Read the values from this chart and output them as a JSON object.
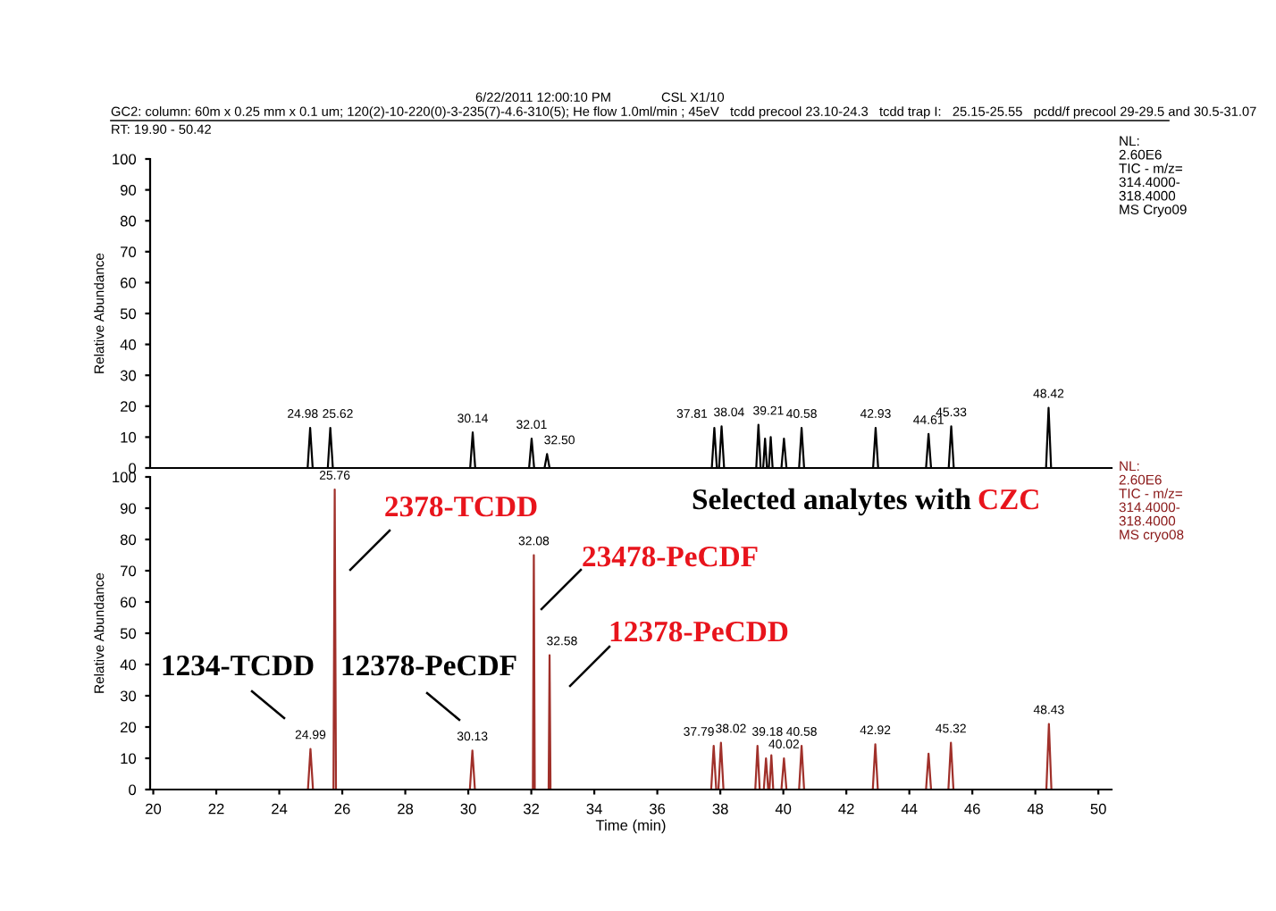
{
  "chart_data": [
    {
      "type": "line",
      "ylabel": "Relative Abundance",
      "xlim": [
        19.9,
        50.42
      ],
      "ylim": [
        0,
        100
      ],
      "yticks": [
        0,
        10,
        20,
        30,
        40,
        50,
        60,
        70,
        80,
        90,
        100
      ],
      "tick_labels": "y",
      "annotations": [
        "6/22/2011 12:00:10 PM",
        "CSL X1/10",
        "GC2: column: 60m x 0.25 mm x 0.1 um; 120(2)-10-220(0)-3-235(7)-4.6-310(5); He flow 1.0ml/min ; 45eV   tcdd precool 23.10-24.3   tcdd trap I:   25.15-25.55   pcdd/f precool 29-29.5 and 30.5-31.07",
        "RT: 19.90 - 50.42",
        "NL:\n2.60E6\nTIC - m/z=\n314.4000-\n318.4000\nMS Cryo09",
        {
          "text": "24.98",
          "x": 24.98,
          "y": 13
        },
        {
          "text": "25.62",
          "x": 25.62,
          "y": 13
        },
        {
          "text": "30.14",
          "x": 30.14,
          "y": 11.5
        },
        {
          "text": "32.01",
          "x": 32.01,
          "y": 9.5
        },
        {
          "text": "32.50",
          "x": 32.5,
          "y": 4.5
        },
        {
          "text": "37.81",
          "x": 37.81,
          "y": 13
        },
        {
          "text": "38.04",
          "x": 38.04,
          "y": 13.5
        },
        {
          "text": "39.21",
          "x": 39.21,
          "y": 14
        },
        {
          "text": "40.58",
          "x": 40.58,
          "y": 13
        },
        {
          "text": "42.93",
          "x": 42.93,
          "y": 13
        },
        {
          "text": "44.61",
          "x": 44.61,
          "y": 11
        },
        {
          "text": "45.33",
          "x": 45.33,
          "y": 13.5
        },
        {
          "text": "48.42",
          "x": 48.42,
          "y": 19.5
        }
      ],
      "x": [
        19.9,
        24.9,
        24.98,
        25.06,
        25.54,
        25.62,
        25.7,
        30.06,
        30.14,
        30.22,
        31.93,
        32.01,
        32.09,
        32.42,
        32.5,
        32.58,
        37.73,
        37.81,
        37.89,
        37.96,
        38.04,
        38.12,
        39.14,
        39.21,
        39.28,
        39.36,
        39.42,
        39.48,
        39.54,
        39.6,
        39.66,
        39.94,
        40.02,
        40.1,
        40.5,
        40.58,
        40.66,
        42.85,
        42.93,
        43.01,
        44.53,
        44.61,
        44.69,
        45.25,
        45.33,
        45.41,
        48.34,
        48.42,
        48.5,
        50.42
      ],
      "series": [
        {
          "color": "#000000",
          "values": [
            0,
            0,
            13,
            0,
            0,
            13,
            0,
            0,
            11.5,
            0,
            0,
            9.5,
            0,
            0,
            4.5,
            0,
            0,
            13,
            0,
            0,
            13.5,
            0,
            0,
            14,
            0,
            0,
            9.5,
            0,
            0,
            10,
            0,
            0,
            9.5,
            0,
            0,
            13,
            0,
            0,
            13,
            0,
            0,
            11,
            0,
            0,
            13.5,
            0,
            0,
            19.5,
            0,
            0
          ]
        }
      ]
    },
    {
      "type": "line",
      "ylabel": "Relative Abundance",
      "xlabel": "Time (min)",
      "xlim": [
        19.9,
        50.42
      ],
      "ylim": [
        0,
        100
      ],
      "yticks": [
        0,
        10,
        20,
        30,
        40,
        50,
        60,
        70,
        80,
        90,
        100
      ],
      "xticks": [
        20,
        22,
        24,
        26,
        28,
        30,
        32,
        34,
        36,
        38,
        40,
        42,
        44,
        46,
        48,
        50
      ],
      "annotations": [
        "Selected analytes with",
        "CZC",
        "NL:\n2.60E6\nTIC - m/z=\n314.4000-\n318.4000\nMS cryo08",
        "2378-TCDD",
        "23478-PeCDF",
        "12378-PeCDD",
        "1234-TCDD",
        "12378-PeCDF",
        {
          "text": "24.99",
          "x": 24.99,
          "y": 13
        },
        {
          "text": "25.76",
          "x": 25.76,
          "y": 96
        },
        {
          "text": "30.13",
          "x": 30.13,
          "y": 12.5
        },
        {
          "text": "32.08",
          "x": 32.08,
          "y": 75
        },
        {
          "text": "32.58",
          "x": 32.58,
          "y": 43
        },
        {
          "text": "37.79",
          "x": 37.79,
          "y": 14
        },
        {
          "text": "38.02",
          "x": 38.02,
          "y": 15
        },
        {
          "text": "39.18",
          "x": 39.18,
          "y": 14
        },
        {
          "text": "40.02",
          "x": 40.02,
          "y": 10
        },
        {
          "text": "40.58",
          "x": 40.58,
          "y": 14
        },
        {
          "text": "42.92",
          "x": 42.92,
          "y": 14.5
        },
        {
          "text": "45.32",
          "x": 45.32,
          "y": 15
        },
        {
          "text": "48.43",
          "x": 48.43,
          "y": 21
        }
      ],
      "x": [
        19.9,
        24.91,
        24.99,
        25.07,
        25.72,
        25.76,
        25.8,
        30.05,
        30.13,
        30.21,
        32.05,
        32.08,
        32.11,
        32.55,
        32.58,
        32.61,
        37.71,
        37.79,
        37.87,
        37.94,
        38.02,
        38.1,
        39.11,
        39.18,
        39.25,
        39.38,
        39.45,
        39.52,
        39.56,
        39.62,
        39.68,
        39.94,
        40.02,
        40.1,
        40.5,
        40.58,
        40.66,
        42.84,
        42.92,
        43.0,
        44.53,
        44.61,
        44.69,
        45.24,
        45.32,
        45.4,
        48.35,
        48.43,
        48.51,
        50.42
      ],
      "series": [
        {
          "color": "#a0302a",
          "values": [
            0,
            0,
            13,
            0,
            0,
            96,
            0,
            0,
            12.5,
            0,
            0,
            75,
            0,
            0,
            43,
            0,
            0,
            14,
            0,
            0,
            15,
            0,
            0,
            14,
            0,
            0,
            10,
            0,
            0,
            11,
            0,
            0,
            10,
            0,
            0,
            14,
            0,
            0,
            14.5,
            0,
            0,
            11.5,
            0,
            0,
            15,
            0,
            0,
            21,
            0,
            0
          ]
        }
      ]
    }
  ]
}
